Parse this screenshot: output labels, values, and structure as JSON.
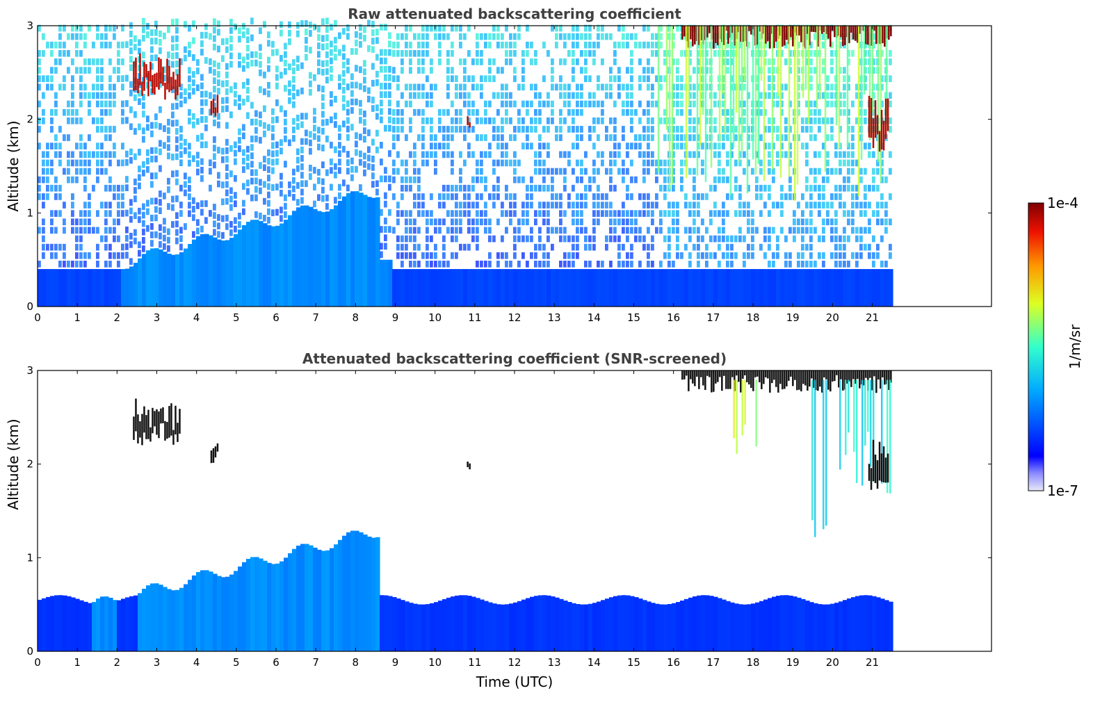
{
  "chart_data": [
    {
      "type": "heatmap",
      "title": "Raw attenuated backscattering coefficient",
      "xlabel": "",
      "ylabel": "Altitude (km)",
      "xlim": [
        0,
        24
      ],
      "ylim": [
        0,
        3
      ],
      "x_ticks": [
        "0",
        "1",
        "2",
        "3",
        "4",
        "5",
        "6",
        "7",
        "8",
        "9",
        "10",
        "11",
        "12",
        "13",
        "14",
        "15",
        "16",
        "17",
        "18",
        "19",
        "20",
        "21"
      ],
      "y_ticks": [
        "0",
        "1",
        "2",
        "3"
      ],
      "data_end_time": 21.45,
      "features": [
        {
          "kind": "boundary-layer",
          "t0": 0,
          "t1": 21.45,
          "top_km": 0.4,
          "level": 0.22
        },
        {
          "kind": "aerosol-plume",
          "t0": 2.0,
          "t1": 8.9,
          "peak_t": 8.6,
          "peak_km": 1.25,
          "level": 0.33
        },
        {
          "kind": "noise",
          "t0": 0,
          "t1": 21.45,
          "from_km": 0.4,
          "to_km": 3.0
        },
        {
          "kind": "cloud",
          "t0": 2.4,
          "t1": 3.6,
          "alt0": 2.2,
          "alt1": 2.55,
          "level": 0.95
        },
        {
          "kind": "cloud",
          "t0": 4.35,
          "t1": 4.55,
          "alt0": 2.0,
          "alt1": 2.2,
          "level": 0.95
        },
        {
          "kind": "cloud",
          "t0": 10.8,
          "t1": 10.9,
          "alt0": 1.9,
          "alt1": 2.0,
          "level": 0.95
        },
        {
          "kind": "cloud-top",
          "t0": 16.2,
          "t1": 21.45,
          "alt0": 2.75,
          "alt1": 3.0,
          "level": 1.0
        },
        {
          "kind": "virga",
          "t0": 15.6,
          "t1": 21.45,
          "alt0": 1.1,
          "alt1": 3.0,
          "level": 0.58
        },
        {
          "kind": "cloud",
          "t0": 20.9,
          "t1": 21.4,
          "alt0": 1.65,
          "alt1": 2.1,
          "level": 0.95
        }
      ]
    },
    {
      "type": "heatmap",
      "title": "Attenuated backscattering coefficient (SNR-screened)",
      "xlabel": "Time (UTC)",
      "ylabel": "Altitude (km)",
      "xlim": [
        0,
        24
      ],
      "ylim": [
        0,
        3
      ],
      "x_ticks": [
        "0",
        "1",
        "2",
        "3",
        "4",
        "5",
        "6",
        "7",
        "8",
        "9",
        "10",
        "11",
        "12",
        "13",
        "14",
        "15",
        "16",
        "17",
        "18",
        "19",
        "20",
        "21"
      ],
      "y_ticks": [
        "0",
        "1",
        "2",
        "3"
      ],
      "data_end_time": 21.45,
      "features": [
        {
          "kind": "boundary-layer",
          "t0": 0,
          "t1": 21.45,
          "top_km": 0.55,
          "level": 0.2
        },
        {
          "kind": "aerosol-plume",
          "t0": 1.0,
          "t1": 9.0,
          "peak_t": 8.6,
          "peak_km": 1.3,
          "level": 0.33
        },
        {
          "kind": "cloud",
          "t0": 2.4,
          "t1": 3.6,
          "alt0": 2.2,
          "alt1": 2.55,
          "level": 1.0
        },
        {
          "kind": "cloud",
          "t0": 4.35,
          "t1": 4.55,
          "alt0": 2.0,
          "alt1": 2.2,
          "level": 1.0
        },
        {
          "kind": "cloud",
          "t0": 10.8,
          "t1": 10.9,
          "alt0": 1.9,
          "alt1": 2.0,
          "level": 1.0
        },
        {
          "kind": "cloud-top",
          "t0": 16.2,
          "t1": 21.45,
          "alt0": 2.75,
          "alt1": 3.0,
          "level": 1.0
        },
        {
          "kind": "virga",
          "t0": 17.5,
          "t1": 18.1,
          "alt0": 1.9,
          "alt1": 2.9,
          "level": 0.62
        },
        {
          "kind": "virga",
          "t0": 19.4,
          "t1": 21.45,
          "alt0": 1.1,
          "alt1": 2.9,
          "level": 0.45
        },
        {
          "kind": "cloud",
          "t0": 20.9,
          "t1": 21.4,
          "alt0": 1.65,
          "alt1": 2.1,
          "level": 1.0
        }
      ]
    }
  ],
  "colorbar": {
    "max_label": "1e-4",
    "min_label": "1e-7",
    "unit_label": "1/m/sr",
    "colormap": "jet",
    "scale": "log",
    "range": [
      1e-07,
      0.0001
    ]
  }
}
